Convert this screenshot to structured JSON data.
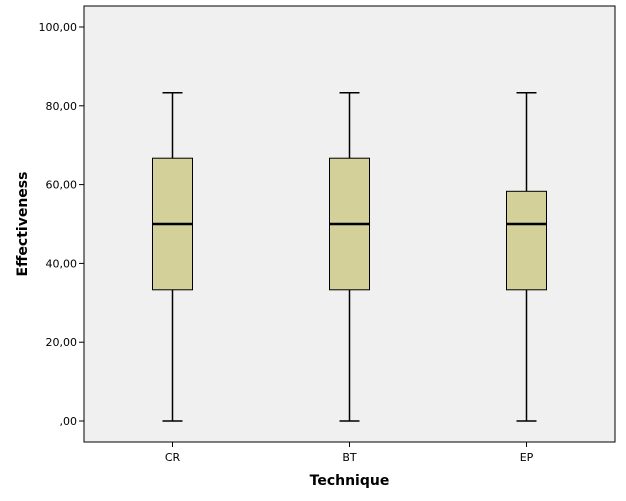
{
  "chart_data": {
    "type": "boxplot",
    "xlabel": "Technique",
    "ylabel": "Effectiveness",
    "ylim": [
      0,
      100
    ],
    "yticks": [
      0,
      20,
      40,
      60,
      80,
      100
    ],
    "ytick_labels": [
      ",00",
      "20,00",
      "40,00",
      "60,00",
      "80,00",
      "100,00"
    ],
    "categories": [
      "CR",
      "BT",
      "EP"
    ],
    "boxes": [
      {
        "category": "CR",
        "min": 0,
        "q1": 33.3,
        "median": 50,
        "q3": 66.7,
        "max": 83.3
      },
      {
        "category": "BT",
        "min": 0,
        "q1": 33.3,
        "median": 50,
        "q3": 66.7,
        "max": 83.3
      },
      {
        "category": "EP",
        "min": 0,
        "q1": 33.3,
        "median": 50,
        "q3": 58.3,
        "max": 83.3
      }
    ],
    "colors": {
      "plot_background": "#f0f0f0",
      "box_fill": "#d4d09a",
      "line": "#000000"
    },
    "grid": false
  }
}
